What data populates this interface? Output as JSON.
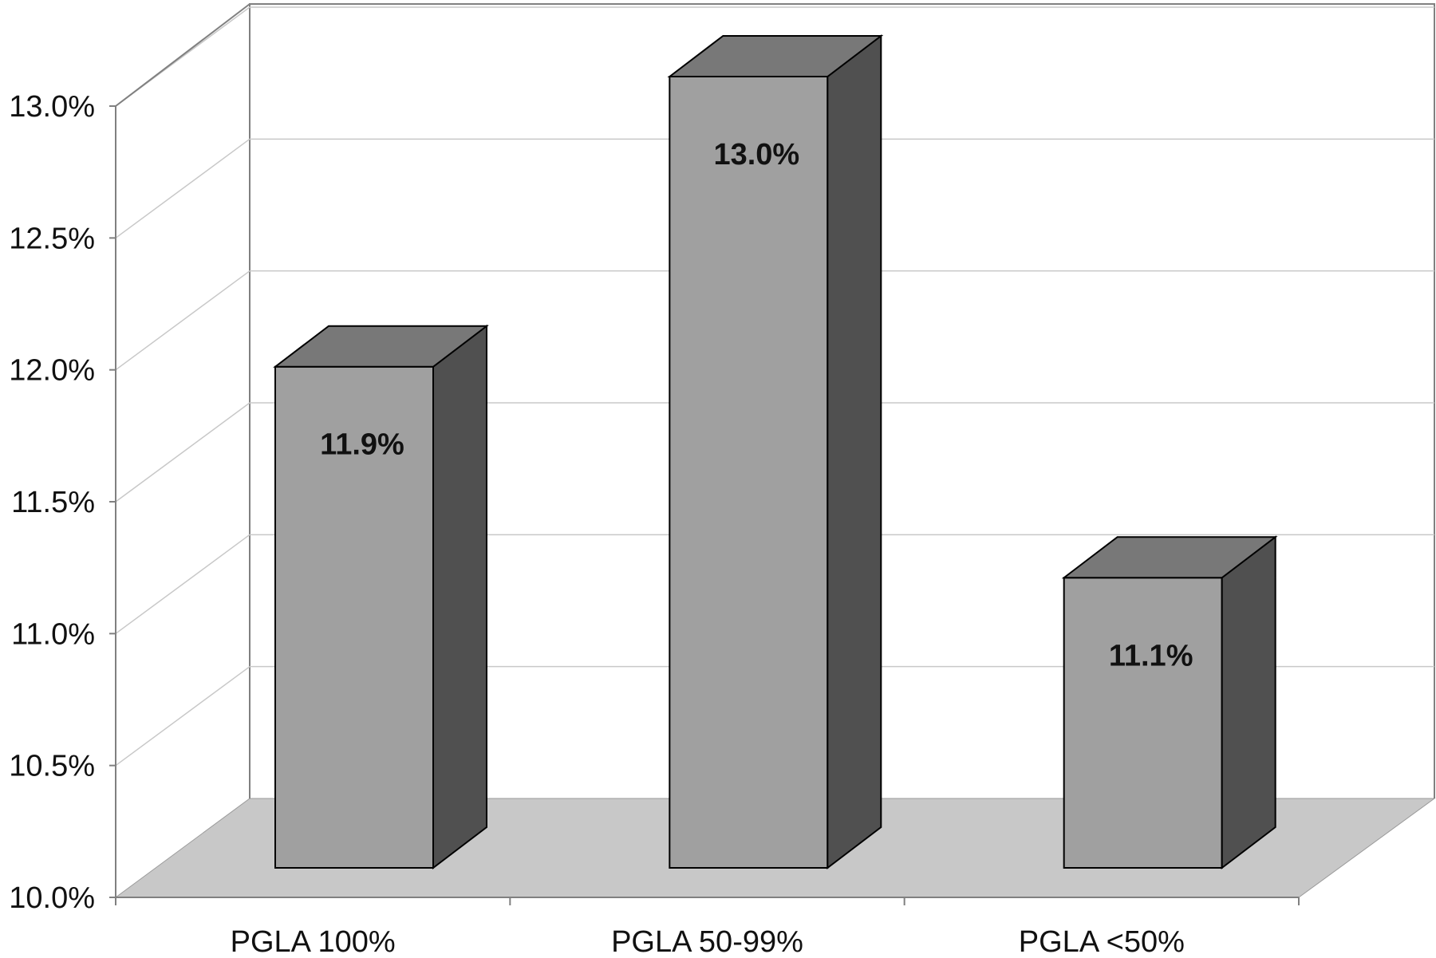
{
  "chart_data": {
    "type": "bar",
    "style": "3d-column",
    "title": "",
    "xlabel": "",
    "ylabel": "",
    "categories": [
      "PGLA 100%",
      "PGLA 50-99%",
      "PGLA <50%"
    ],
    "values": [
      11.9,
      13.0,
      11.1
    ],
    "data_labels": [
      "11.9%",
      "13.0%",
      "11.1%"
    ],
    "ylim": [
      10.0,
      13.0
    ],
    "yticks": [
      10.0,
      10.5,
      11.0,
      11.5,
      12.0,
      12.5,
      13.0
    ],
    "ytick_labels": [
      "10.0%",
      "10.5%",
      "11.0%",
      "11.5%",
      "12.0%",
      "12.5%",
      "13.0%"
    ],
    "grid": true,
    "legend": "none",
    "colors": {
      "bar_front": "#a0a0a0",
      "bar_top": "#787878",
      "bar_side": "#505050",
      "floor": "#c8c8c8",
      "gridline": "#c8c8c8",
      "axis": "#808080"
    }
  }
}
